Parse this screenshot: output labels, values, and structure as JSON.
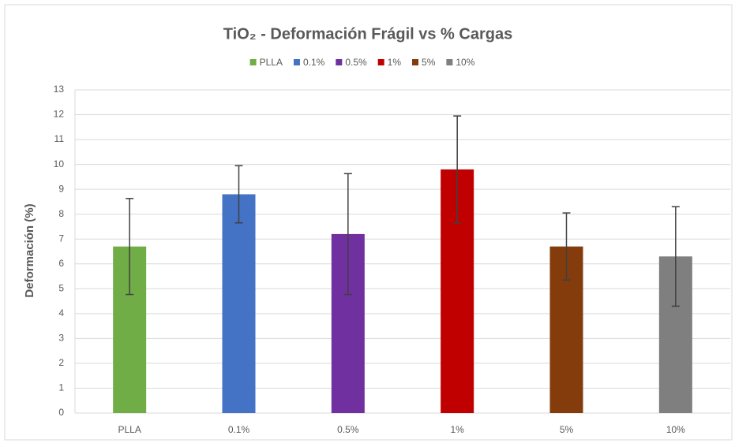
{
  "chart_data": {
    "type": "bar",
    "title": "TiO₂ - Deformación Frágil vs % Cargas",
    "y_label": "Deformación (%)",
    "categories": [
      "PLLA",
      "0.1%",
      "0.5%",
      "1%",
      "5%",
      "10%"
    ],
    "colors": [
      "#70ad47",
      "#4472c4",
      "#7030a0",
      "#c00000",
      "#843c0c",
      "#7f7f7f"
    ],
    "values": [
      6.7,
      8.8,
      7.2,
      9.8,
      6.7,
      6.3
    ],
    "errors": [
      1.93,
      1.15,
      2.43,
      2.15,
      1.35,
      2.0
    ],
    "ylim": [
      0,
      13
    ],
    "yticks": [
      0,
      1,
      2,
      3,
      4,
      5,
      6,
      7,
      8,
      9,
      10,
      11,
      12,
      13
    ],
    "grid": true,
    "legend": "top"
  }
}
